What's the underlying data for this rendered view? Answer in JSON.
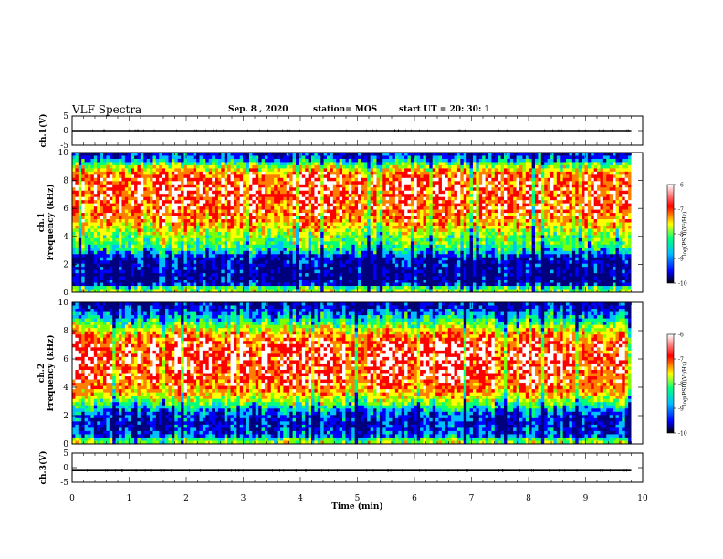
{
  "header": {
    "title": "VLF Spectra",
    "date": "Sep. 8 , 2020",
    "station": "station= MOS",
    "start": "start UT = 20: 30: 1"
  },
  "colors": {
    "colormap": [
      "#00007f",
      "#0000ff",
      "#00bfff",
      "#00ff7f",
      "#7fff00",
      "#ffff00",
      "#ff7f00",
      "#ff0000",
      "#ffffff"
    ]
  },
  "chart_data": [
    {
      "type": "line",
      "ylabel": "ch.1(V)",
      "ylim": [
        -5,
        5
      ],
      "yticks": [
        "5",
        "0",
        "-5"
      ],
      "xlim": [
        0,
        10
      ],
      "series": [
        {
          "x": [
            0,
            9.8
          ],
          "y": [
            0,
            0
          ]
        }
      ]
    },
    {
      "type": "heatmap",
      "ylabel_lines": [
        "ch.1",
        "Frequency (kHz)"
      ],
      "ylim": [
        0,
        10
      ],
      "yticks": [
        "0",
        "2",
        "4",
        "6",
        "8",
        "10"
      ],
      "xlim": [
        0,
        10
      ],
      "data_xmax": 9.8,
      "intensity_profile": {
        "freq_khz": [
          0,
          0.3,
          0.6,
          1.0,
          1.5,
          2.0,
          2.5,
          3.0,
          3.5,
          4.0,
          4.5,
          5.0,
          6.0,
          7.0,
          8.0,
          8.5,
          9.0,
          9.5,
          10.0
        ],
        "level": [
          0.55,
          0.45,
          0.1,
          0.05,
          0.08,
          0.1,
          0.12,
          0.35,
          0.45,
          0.5,
          0.6,
          0.7,
          0.8,
          0.82,
          0.82,
          0.75,
          0.55,
          0.25,
          0.1
        ]
      },
      "colorbar": {
        "ticks": [
          "-6",
          "-7",
          "-8",
          "-9",
          "-10"
        ],
        "label": "log(PSD)(V²/Hz)"
      }
    },
    {
      "type": "heatmap",
      "ylabel_lines": [
        "ch.2",
        "Frequency (kHz)"
      ],
      "ylim": [
        0,
        10
      ],
      "yticks": [
        "0",
        "2",
        "4",
        "6",
        "8",
        "10"
      ],
      "xlim": [
        0,
        10
      ],
      "data_xmax": 9.8,
      "intensity_profile": {
        "freq_khz": [
          0,
          0.3,
          0.6,
          1.0,
          1.5,
          2.0,
          2.5,
          3.0,
          3.5,
          4.0,
          5.0,
          6.0,
          7.0,
          7.5,
          8.0,
          8.5,
          9.0,
          9.5,
          10.0
        ],
        "level": [
          0.55,
          0.45,
          0.2,
          0.15,
          0.12,
          0.18,
          0.3,
          0.5,
          0.65,
          0.75,
          0.82,
          0.85,
          0.83,
          0.75,
          0.62,
          0.45,
          0.3,
          0.15,
          0.08
        ]
      },
      "colorbar": {
        "ticks": [
          "-6",
          "-7",
          "-8",
          "-9",
          "-10"
        ],
        "label": "log(PSD)(V²/Hz)"
      }
    },
    {
      "type": "line",
      "ylabel": "ch.3(V)",
      "ylim": [
        -5,
        5
      ],
      "yticks": [
        "5",
        "0",
        "-5"
      ],
      "xlim": [
        0,
        10
      ],
      "xticks": [
        "0",
        "1",
        "2",
        "3",
        "4",
        "5",
        "6",
        "7",
        "8",
        "9",
        "10"
      ],
      "xlabel": "Time (min)",
      "series": [
        {
          "x": [
            0,
            9.8
          ],
          "y": [
            -1,
            -1
          ]
        }
      ]
    }
  ]
}
